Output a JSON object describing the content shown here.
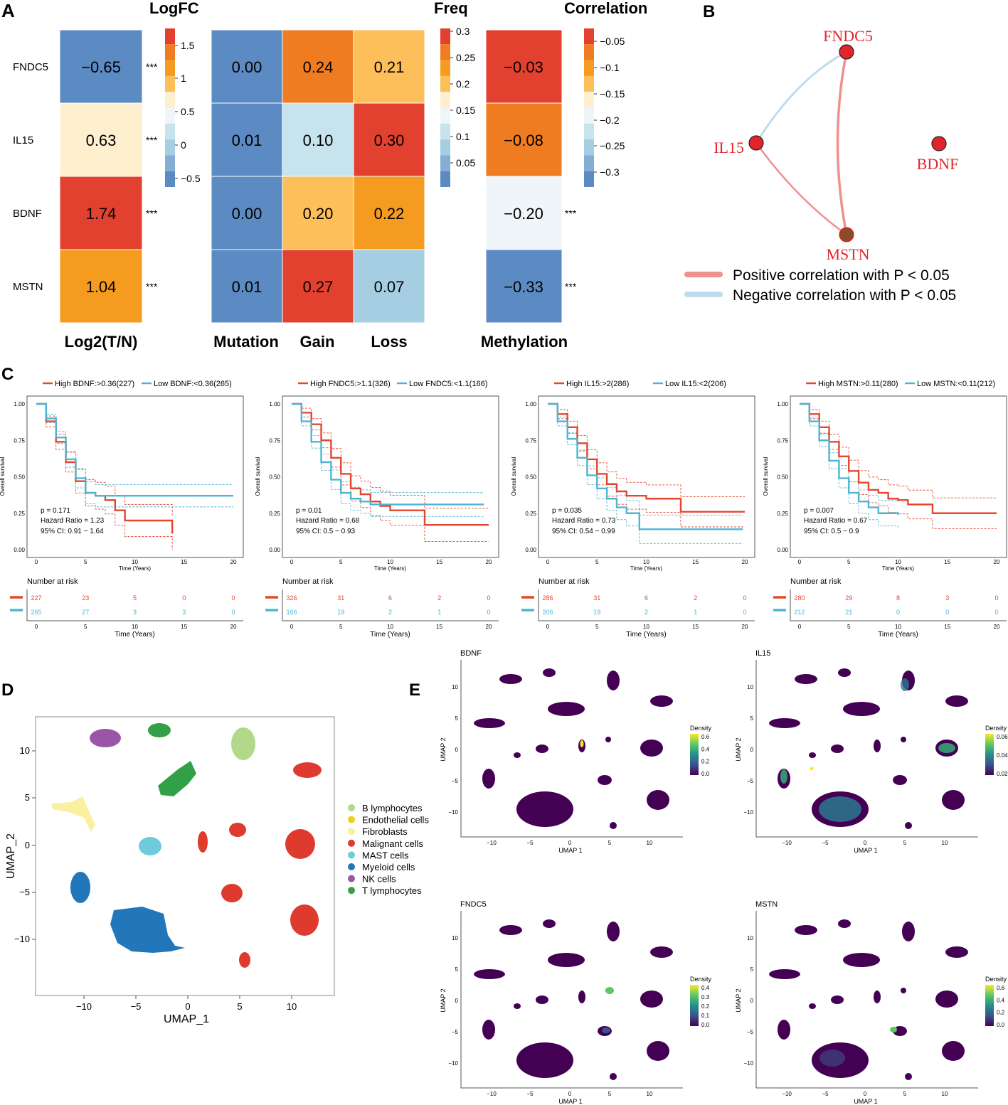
{
  "colors": {
    "red": "#E3412F",
    "orange": "#F08221",
    "light_orange": "#F59B1F",
    "yellow": "#FDBF5A",
    "cream": "#FEF0CF",
    "pale": "#EFF5F9",
    "light_blue": "#C7E3EE",
    "mid_blue": "#A6CEE2",
    "blue": "#5C8AC3",
    "km_high": "#E5462F",
    "km_low": "#4CB5D3",
    "pos_edge": "#F0908F",
    "neg_edge": "#BFDBEE"
  },
  "panel_a": {
    "label": "A",
    "genes": [
      "FNDC5",
      "IL15",
      "BDNF",
      "MSTN"
    ],
    "logfc": {
      "title": "LogFC",
      "xlabel": "Log2(T/N)",
      "values": [
        "−0.65",
        "0.63",
        "1.74",
        "1.04"
      ],
      "cell_colors": [
        "#5C8AC3",
        "#FEF0CF",
        "#E3412F",
        "#F59B1F"
      ],
      "stars": [
        "***",
        "***",
        "***",
        "***"
      ],
      "legend_ticks": [
        "1.5",
        "1",
        "0.5",
        "0",
        "−0.5"
      ]
    },
    "freq": {
      "title": "Freq",
      "columns": [
        "Mutation",
        "Gain",
        "Loss"
      ],
      "rows": [
        [
          "0.00",
          "0.24",
          "0.21"
        ],
        [
          "0.01",
          "0.10",
          "0.30"
        ],
        [
          "0.00",
          "0.20",
          "0.22"
        ],
        [
          "0.01",
          "0.27",
          "0.07"
        ]
      ],
      "cell_colors": [
        [
          "#5C8AC3",
          "#F07C22",
          "#FDBF5A"
        ],
        [
          "#5C8AC3",
          "#C7E3EE",
          "#E3412F"
        ],
        [
          "#5C8AC3",
          "#FDBF5A",
          "#F59B1F"
        ],
        [
          "#5C8AC3",
          "#E3412F",
          "#A6CEE2"
        ]
      ],
      "legend_ticks": [
        "0.3",
        "0.25",
        "0.2",
        "0.15",
        "0.1",
        "0.05"
      ]
    },
    "correlation": {
      "title": "Correlation",
      "xlabel": "Methylation",
      "values": [
        "−0.03",
        "−0.08",
        "−0.20",
        "−0.33"
      ],
      "cell_colors": [
        "#E3412F",
        "#F07C22",
        "#EFF5F9",
        "#5C8AC3"
      ],
      "stars": [
        "",
        "",
        "***",
        "***"
      ],
      "legend_ticks": [
        "−0.05",
        "−0.1",
        "−0.15",
        "−0.2",
        "−0.25",
        "−0.3"
      ]
    }
  },
  "panel_b": {
    "label": "B",
    "nodes": [
      "FNDC5",
      "IL15",
      "BDNF",
      "MSTN"
    ],
    "legend": [
      "Positive correlation with P < 0.05",
      "Negative correlation with P < 0.05"
    ]
  },
  "panel_c": {
    "label": "C",
    "y_label": "Overall survival",
    "x_label": "Time (Years)",
    "risk_title": "Number at risk",
    "y_ticks": [
      "0.00",
      "0.25",
      "0.50",
      "0.75",
      "1.00"
    ],
    "x_ticks": [
      "0",
      "5",
      "10",
      "15",
      "20"
    ],
    "plots": [
      {
        "gene": "BDNF",
        "high_label": "High BDNF:>0.36(227)",
        "low_label": "Low BDNF:<0.36(265)",
        "p": "p = 0.171",
        "hr": "Hazard Ratio = 1.23",
        "ci": "95% CI: 0.91 − 1.64",
        "risk_high": [
          "227",
          "23",
          "5",
          "0",
          "0"
        ],
        "risk_low": [
          "265",
          "27",
          "3",
          "3",
          "0"
        ],
        "high_curve": [
          [
            0,
            1
          ],
          [
            1,
            0.88
          ],
          [
            2,
            0.74
          ],
          [
            3,
            0.6
          ],
          [
            4,
            0.47
          ],
          [
            5,
            0.39
          ],
          [
            6,
            0.37
          ],
          [
            7,
            0.34
          ],
          [
            8,
            0.27
          ],
          [
            9,
            0.2
          ],
          [
            10,
            0.2
          ],
          [
            11,
            0.2
          ],
          [
            12,
            0.2
          ],
          [
            13,
            0.2
          ],
          [
            13.8,
            0.11
          ]
        ],
        "low_curve": [
          [
            0,
            1
          ],
          [
            1,
            0.9
          ],
          [
            2,
            0.77
          ],
          [
            3,
            0.62
          ],
          [
            4,
            0.49
          ],
          [
            5,
            0.39
          ],
          [
            6,
            0.37
          ],
          [
            10,
            0.37
          ],
          [
            15,
            0.37
          ],
          [
            20,
            0.37
          ]
        ]
      },
      {
        "gene": "FNDC5",
        "high_label": "High FNDC5:>1.1(326)",
        "low_label": "Low FNDC5:<1.1(166)",
        "p": "p = 0.01",
        "hr": "Hazard Ratio = 0.68",
        "ci": "95% CI: 0.5 − 0.93",
        "risk_high": [
          "326",
          "31",
          "6",
          "2",
          "0"
        ],
        "risk_low": [
          "166",
          "19",
          "2",
          "1",
          "0"
        ],
        "high_curve": [
          [
            0,
            1
          ],
          [
            1,
            0.94
          ],
          [
            2,
            0.86
          ],
          [
            3,
            0.75
          ],
          [
            4,
            0.63
          ],
          [
            5,
            0.52
          ],
          [
            6,
            0.42
          ],
          [
            7,
            0.38
          ],
          [
            8,
            0.33
          ],
          [
            9,
            0.3
          ],
          [
            10,
            0.27
          ],
          [
            13.5,
            0.17
          ],
          [
            20,
            0.17
          ]
        ],
        "low_curve": [
          [
            0,
            1
          ],
          [
            1,
            0.88
          ],
          [
            2,
            0.74
          ],
          [
            3,
            0.6
          ],
          [
            4,
            0.48
          ],
          [
            5,
            0.39
          ],
          [
            6,
            0.35
          ],
          [
            7,
            0.33
          ],
          [
            8,
            0.31
          ],
          [
            10,
            0.31
          ],
          [
            15,
            0.31
          ],
          [
            19.5,
            0.31
          ]
        ]
      },
      {
        "gene": "IL15",
        "high_label": "High IL15:>2(286)",
        "low_label": "Low IL15:<2(206)",
        "p": "p = 0.035",
        "hr": "Hazard Ratio = 0.73",
        "ci": "95% CI: 0.54 − 0.99",
        "risk_high": [
          "286",
          "31",
          "6",
          "2",
          "0"
        ],
        "risk_low": [
          "206",
          "19",
          "2",
          "1",
          "0"
        ],
        "high_curve": [
          [
            0,
            1
          ],
          [
            1,
            0.93
          ],
          [
            2,
            0.84
          ],
          [
            3,
            0.73
          ],
          [
            4,
            0.62
          ],
          [
            5,
            0.52
          ],
          [
            6,
            0.45
          ],
          [
            7,
            0.4
          ],
          [
            8,
            0.37
          ],
          [
            10,
            0.35
          ],
          [
            13.5,
            0.26
          ],
          [
            20,
            0.26
          ]
        ],
        "low_curve": [
          [
            0,
            1
          ],
          [
            1,
            0.88
          ],
          [
            2,
            0.76
          ],
          [
            3,
            0.63
          ],
          [
            4,
            0.51
          ],
          [
            5,
            0.42
          ],
          [
            6,
            0.35
          ],
          [
            7,
            0.29
          ],
          [
            8,
            0.25
          ],
          [
            9.3,
            0.14
          ],
          [
            15,
            0.14
          ],
          [
            19.8,
            0.14
          ]
        ]
      },
      {
        "gene": "MSTN",
        "high_label": "High MSTN:>0.11(280)",
        "low_label": "Low MSTN:<0.11(212)",
        "p": "p = 0.007",
        "hr": "Hazard Ratio = 0.67",
        "ci": "95% CI: 0.5 − 0.9",
        "risk_high": [
          "280",
          "29",
          "8",
          "3",
          "0"
        ],
        "risk_low": [
          "212",
          "21",
          "0",
          "0",
          "0"
        ],
        "high_curve": [
          [
            0,
            1
          ],
          [
            1,
            0.93
          ],
          [
            2,
            0.84
          ],
          [
            3,
            0.74
          ],
          [
            4,
            0.64
          ],
          [
            5,
            0.54
          ],
          [
            6,
            0.46
          ],
          [
            7,
            0.41
          ],
          [
            8,
            0.39
          ],
          [
            9,
            0.35
          ],
          [
            10,
            0.34
          ],
          [
            11,
            0.31
          ],
          [
            13.5,
            0.25
          ],
          [
            20,
            0.25
          ]
        ],
        "low_curve": [
          [
            0,
            1
          ],
          [
            1,
            0.88
          ],
          [
            2,
            0.75
          ],
          [
            3,
            0.61
          ],
          [
            4,
            0.49
          ],
          [
            5,
            0.39
          ],
          [
            6,
            0.33
          ],
          [
            7,
            0.29
          ],
          [
            8,
            0.25
          ],
          [
            10,
            0.24
          ]
        ]
      }
    ]
  },
  "panel_d": {
    "label": "D",
    "x_label": "UMAP_1",
    "y_label": "UMAP_2",
    "x_ticks": [
      "−10",
      "−5",
      "0",
      "5",
      "10"
    ],
    "y_ticks": [
      "10",
      "5",
      "0",
      "−5",
      "−10"
    ],
    "legend": [
      {
        "name": "B lymphocytes",
        "color": "#B2D88A"
      },
      {
        "name": "Endothelial cells",
        "color": "#F2CD1C"
      },
      {
        "name": "Fibroblasts",
        "color": "#FBEFA2"
      },
      {
        "name": "Malignant cells",
        "color": "#DF3A2E"
      },
      {
        "name": "MAST cells",
        "color": "#6DCBDC"
      },
      {
        "name": "Myeloid cells",
        "color": "#2277BA"
      },
      {
        "name": "NK cells",
        "color": "#9B55A8"
      },
      {
        "name": "T lymphocytes",
        "color": "#32A046"
      }
    ]
  },
  "panel_e": {
    "label": "E",
    "x_label": "UMAP 1",
    "y_label": "UMAP 2",
    "legend_title": "Density",
    "x_ticks": [
      "−10",
      "−5",
      "0",
      "5",
      "10"
    ],
    "y_ticks": [
      "10",
      "5",
      "0",
      "−5",
      "−10"
    ],
    "plots": [
      {
        "gene": "BDNF",
        "ticks": [
          "0.6",
          "0.4",
          "0.2",
          "0.0"
        ]
      },
      {
        "gene": "IL15",
        "ticks": [
          "0.06",
          "0.04",
          "0.02"
        ]
      },
      {
        "gene": "FNDC5",
        "ticks": [
          "0.4",
          "0.3",
          "0.2",
          "0.1",
          "0.0"
        ]
      },
      {
        "gene": "MSTN",
        "ticks": [
          "0.6",
          "0.4",
          "0.2",
          "0.0"
        ]
      }
    ]
  }
}
